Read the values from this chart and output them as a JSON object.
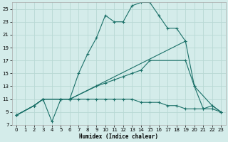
{
  "xlabel": "Humidex (Indice chaleur)",
  "bg_color": "#d4ecea",
  "grid_color": "#b8d8d4",
  "line_color": "#1a7068",
  "xlim": [
    -0.5,
    23.5
  ],
  "ylim": [
    7,
    26
  ],
  "xticks": [
    0,
    1,
    2,
    3,
    4,
    5,
    6,
    7,
    8,
    9,
    10,
    11,
    12,
    13,
    14,
    15,
    16,
    17,
    18,
    19,
    20,
    21,
    22,
    23
  ],
  "yticks": [
    7,
    9,
    11,
    13,
    15,
    17,
    19,
    21,
    23,
    25
  ],
  "line1_x": [
    0,
    2,
    3,
    4,
    5,
    6,
    7,
    8,
    9,
    10,
    11,
    12,
    13,
    14,
    15,
    16,
    17,
    18,
    19
  ],
  "line1_y": [
    8.5,
    10,
    11,
    7.5,
    11,
    11,
    15,
    18,
    20.5,
    24,
    23,
    23,
    25.5,
    26,
    26,
    24,
    22,
    22,
    20
  ],
  "line2_x": [
    0,
    2,
    3,
    5,
    6,
    19,
    20,
    22,
    23
  ],
  "line2_y": [
    8.5,
    10,
    11,
    11,
    11,
    20,
    13,
    10,
    9
  ],
  "line3_x": [
    0,
    2,
    3,
    5,
    6,
    9,
    10,
    11,
    12,
    13,
    14,
    15,
    19,
    20,
    21,
    22,
    23
  ],
  "line3_y": [
    8.5,
    10,
    11,
    11,
    11,
    13,
    13.5,
    14,
    14.5,
    15,
    15.5,
    17,
    17,
    13,
    9.5,
    10,
    9
  ],
  "line4_x": [
    0,
    2,
    3,
    5,
    6,
    7,
    8,
    9,
    10,
    11,
    12,
    13,
    14,
    15,
    16,
    17,
    18,
    19,
    20,
    21,
    22,
    23
  ],
  "line4_y": [
    8.5,
    10,
    11,
    11,
    11,
    11,
    11,
    11,
    11,
    11,
    11,
    11,
    10.5,
    10.5,
    10.5,
    10,
    10,
    9.5,
    9.5,
    9.5,
    9.5,
    9
  ]
}
